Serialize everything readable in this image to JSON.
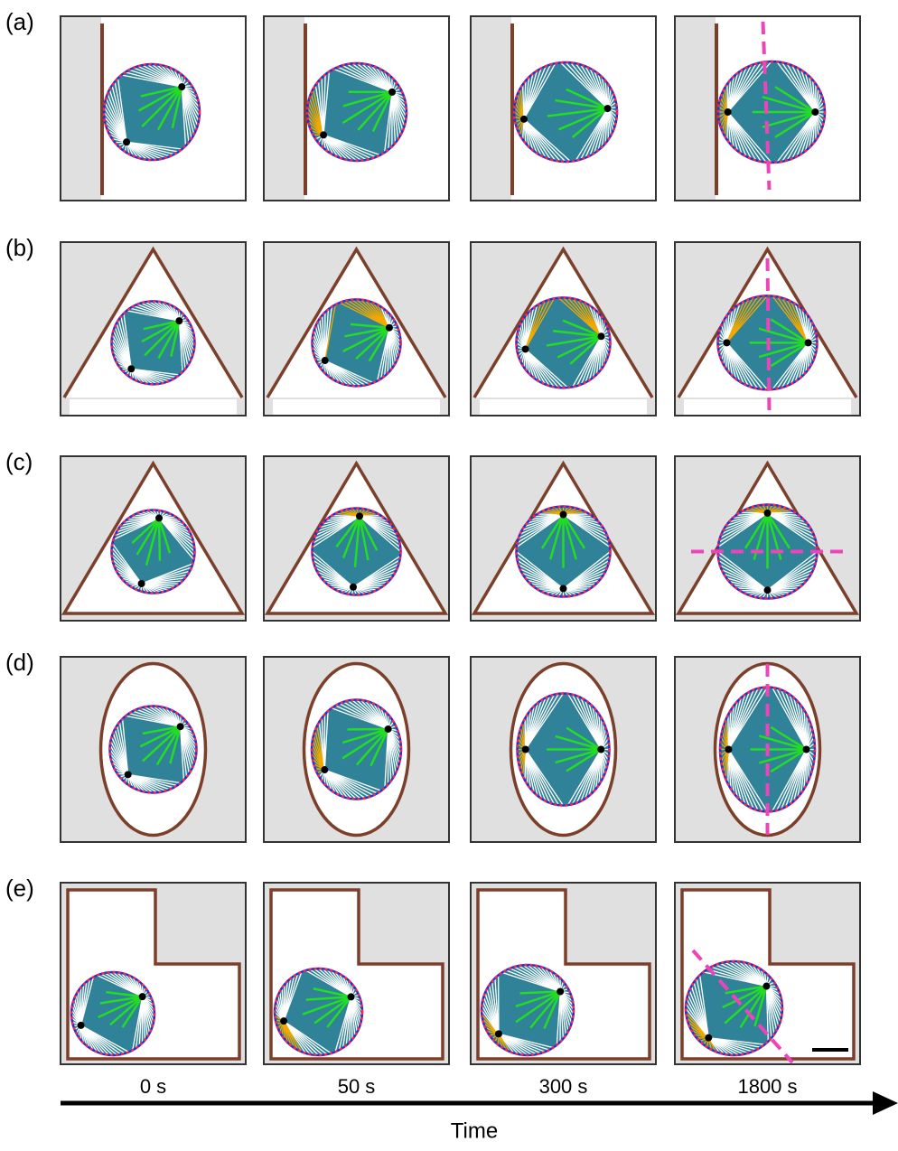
{
  "panels": [
    {
      "label": "(a)"
    },
    {
      "label": "(b)"
    },
    {
      "label": "(c)"
    },
    {
      "label": "(d)"
    },
    {
      "label": "(e)"
    }
  ],
  "times": [
    "0 s",
    "50 s",
    "300 s",
    "1800 s"
  ],
  "axis_label": "Time"
}
